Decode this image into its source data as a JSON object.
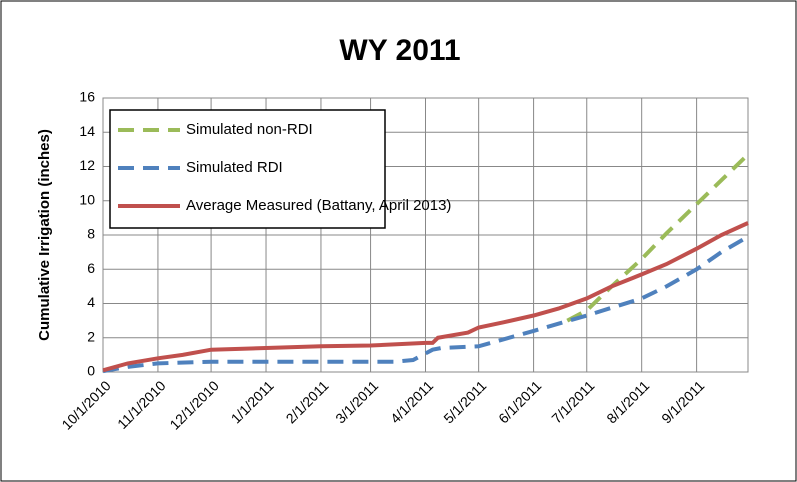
{
  "chart_data": {
    "type": "line",
    "title": "WY 2011",
    "y_label": "Cumulative Irrigation (inches)",
    "x": null,
    "xlim": [
      "10/1/2010",
      "9/30/2011"
    ],
    "xticks": [
      "10/1/2010",
      "11/1/2010",
      "12/1/2010",
      "1/1/2011",
      "2/1/2011",
      "3/1/2011",
      "4/1/2011",
      "5/1/2011",
      "6/1/2011",
      "7/1/2011",
      "8/1/2011",
      "9/1/2011"
    ],
    "ylim": [
      0,
      16
    ],
    "yticks": [
      0,
      2,
      4,
      6,
      8,
      10,
      12,
      14,
      16
    ],
    "grid": true,
    "legend": "upper left",
    "series": [
      {
        "name": "Simulated non-RDI",
        "color": "#9bbb59",
        "dash": true,
        "x": [
          "6/20/2011",
          "7/1/2011",
          "7/15/2011",
          "8/1/2011",
          "8/15/2011",
          "9/1/2011",
          "9/15/2011",
          "9/30/2011"
        ],
        "values": [
          3.0,
          3.6,
          5.0,
          6.6,
          8.1,
          9.8,
          11.2,
          12.7
        ]
      },
      {
        "name": "Simulated RDI",
        "color": "#4f81bd",
        "dash": true,
        "x": [
          "10/1/2010",
          "10/15/2010",
          "11/1/2010",
          "12/1/2010",
          "3/15/2011",
          "3/25/2011",
          "4/5/2011",
          "4/10/2011",
          "5/1/2011",
          "6/1/2011",
          "7/1/2011",
          "8/1/2011",
          "8/15/2011",
          "9/1/2011",
          "9/15/2011",
          "9/30/2011"
        ],
        "values": [
          0.05,
          0.3,
          0.5,
          0.6,
          0.6,
          0.7,
          1.3,
          1.4,
          1.5,
          2.4,
          3.3,
          4.3,
          5.0,
          6.0,
          7.0,
          7.9
        ]
      },
      {
        "name": "Average Measured (Battany, April 2013)",
        "color": "#c0504d",
        "dash": false,
        "x": [
          "10/1/2010",
          "10/15/2010",
          "11/1/2010",
          "11/15/2010",
          "12/1/2010",
          "1/1/2011",
          "2/1/2011",
          "3/1/2011",
          "4/1/2011",
          "4/5/2011",
          "4/8/2011",
          "4/25/2011",
          "5/1/2011",
          "5/15/2011",
          "6/1/2011",
          "6/15/2011",
          "7/1/2011",
          "7/15/2011",
          "8/1/2011",
          "8/15/2011",
          "9/1/2011",
          "9/15/2011",
          "9/30/2011"
        ],
        "values": [
          0.1,
          0.5,
          0.8,
          1.0,
          1.3,
          1.4,
          1.5,
          1.55,
          1.7,
          1.7,
          2.0,
          2.3,
          2.6,
          2.9,
          3.3,
          3.7,
          4.3,
          5.0,
          5.7,
          6.3,
          7.2,
          8.0,
          8.7
        ]
      }
    ]
  }
}
